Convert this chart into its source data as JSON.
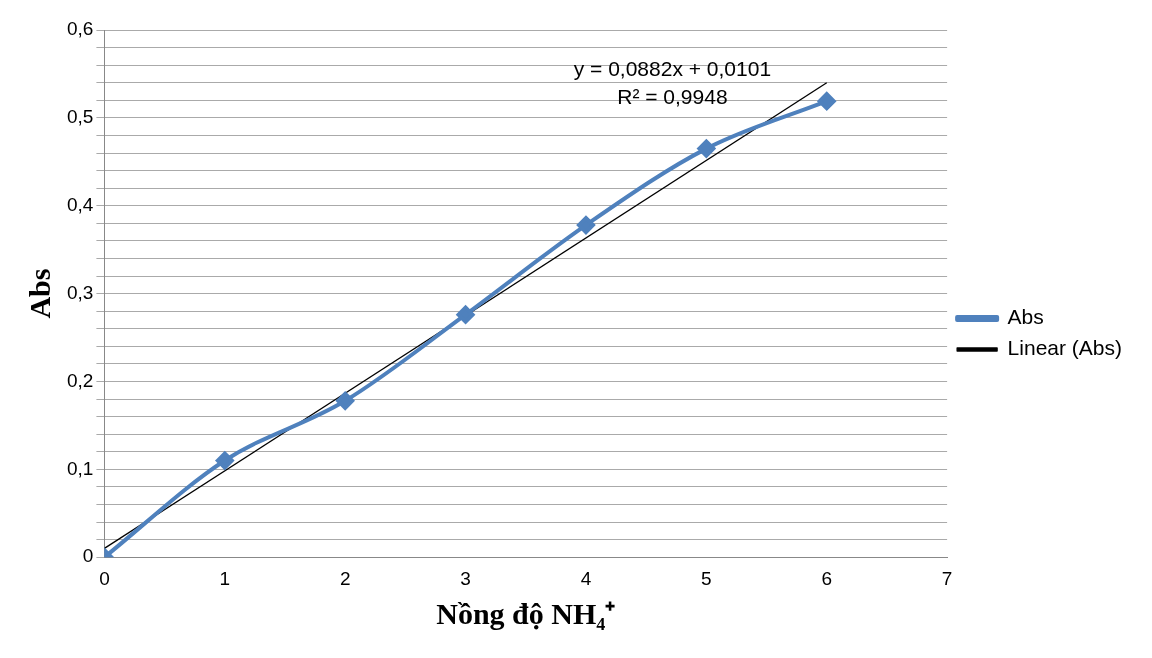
{
  "chart_data": {
    "type": "line",
    "xlabel": "Nồng độ NH₄⁺",
    "ylabel": "Abs",
    "xlim": [
      0,
      7
    ],
    "xticks": [
      0,
      1,
      2,
      3,
      4,
      5,
      6,
      7
    ],
    "ylim": [
      0,
      0.6
    ],
    "yticks": [
      0,
      {
        "value": 0.02,
        "label": null
      },
      {
        "value": 0.04,
        "label": null
      },
      {
        "value": 0.06,
        "label": null
      },
      {
        "value": 0.08,
        "label": null
      },
      {
        "value": 0.1,
        "label": "0,1"
      },
      {
        "value": 0.12,
        "label": null
      },
      {
        "value": 0.14,
        "label": null
      },
      {
        "value": 0.16,
        "label": null
      },
      {
        "value": 0.18,
        "label": null
      },
      {
        "value": 0.2,
        "label": "0,2"
      },
      {
        "value": 0.22,
        "label": null
      },
      {
        "value": 0.24,
        "label": null
      },
      {
        "value": 0.26,
        "label": null
      },
      {
        "value": 0.28,
        "label": null
      },
      {
        "value": 0.3,
        "label": "0,3"
      },
      {
        "value": 0.32,
        "label": null
      },
      {
        "value": 0.34,
        "label": null
      },
      {
        "value": 0.36,
        "label": null
      },
      {
        "value": 0.38,
        "label": null
      },
      {
        "value": 0.4,
        "label": "0,4"
      },
      {
        "value": 0.42,
        "label": null
      },
      {
        "value": 0.44,
        "label": null
      },
      {
        "value": 0.46,
        "label": null
      },
      {
        "value": 0.48,
        "label": null
      },
      {
        "value": 0.5,
        "label": "0,5"
      },
      {
        "value": 0.52,
        "label": null
      },
      {
        "value": 0.54,
        "label": null
      },
      {
        "value": 0.56,
        "label": null
      },
      {
        "value": 0.58,
        "label": null
      },
      {
        "value": 0.6,
        "label": "0,6"
      }
    ],
    "grid": "y",
    "legend": "right",
    "marker": "diamond",
    "series": [
      {
        "name": "Abs",
        "color": "#4f81bd",
        "x": [
          0,
          1,
          2,
          3,
          4,
          5,
          6
        ],
        "values": [
          0,
          0.11,
          0.178,
          0.276,
          0.378,
          0.465,
          0.519
        ]
      },
      {
        "name": "Linear (Abs)",
        "marker": "none",
        "color": "#000000",
        "x": [
          0,
          6
        ],
        "values": [
          0.01,
          0.54
        ]
      }
    ],
    "annotations": [
      "y = 0,0882x + 0,0101",
      "R² = 0,9948"
    ]
  }
}
